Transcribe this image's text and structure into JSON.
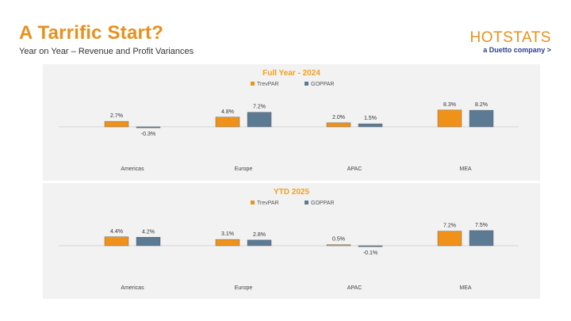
{
  "header": {
    "title": "A Tarrific Start?",
    "subtitle": "Year on Year – Revenue and Profit Variances"
  },
  "logo": {
    "main": "HOTSTATS",
    "tagline": "a Duetto company >"
  },
  "colors": {
    "trevpar": "#F0921A",
    "goppar": "#5B7A94",
    "title_accent": "#E8901B",
    "chart_title": "#F0A020",
    "panel_bg": "#F2F2F2"
  },
  "chart_data": [
    {
      "type": "bar",
      "title": "Full Year - 2024",
      "categories": [
        "Americas",
        "Europe",
        "APAC",
        "MEA"
      ],
      "series": [
        {
          "name": "TrevPAR",
          "values": [
            2.7,
            4.8,
            2.0,
            8.3
          ],
          "labels": [
            "2.7%",
            "4.8%",
            "2.0%",
            "8.3%"
          ]
        },
        {
          "name": "GOPPAR",
          "values": [
            -0.3,
            7.2,
            1.5,
            8.2
          ],
          "labels": [
            "-0.3%",
            "7.2%",
            "1.5%",
            "8.2%"
          ]
        }
      ],
      "legend": "top",
      "grid": false
    },
    {
      "type": "bar",
      "title": "YTD 2025",
      "categories": [
        "Americas",
        "Europe",
        "APAC",
        "MEA"
      ],
      "series": [
        {
          "name": "TrevPAR",
          "values": [
            4.4,
            3.1,
            0.5,
            7.2
          ],
          "labels": [
            "4.4%",
            "3.1%",
            "0.5%",
            "7.2%"
          ]
        },
        {
          "name": "GOPPAR",
          "values": [
            4.2,
            2.8,
            -0.1,
            7.5
          ],
          "labels": [
            "4.2%",
            "2.8%",
            "-0.1%",
            "7.5%"
          ]
        }
      ],
      "legend": "top",
      "grid": false
    }
  ]
}
